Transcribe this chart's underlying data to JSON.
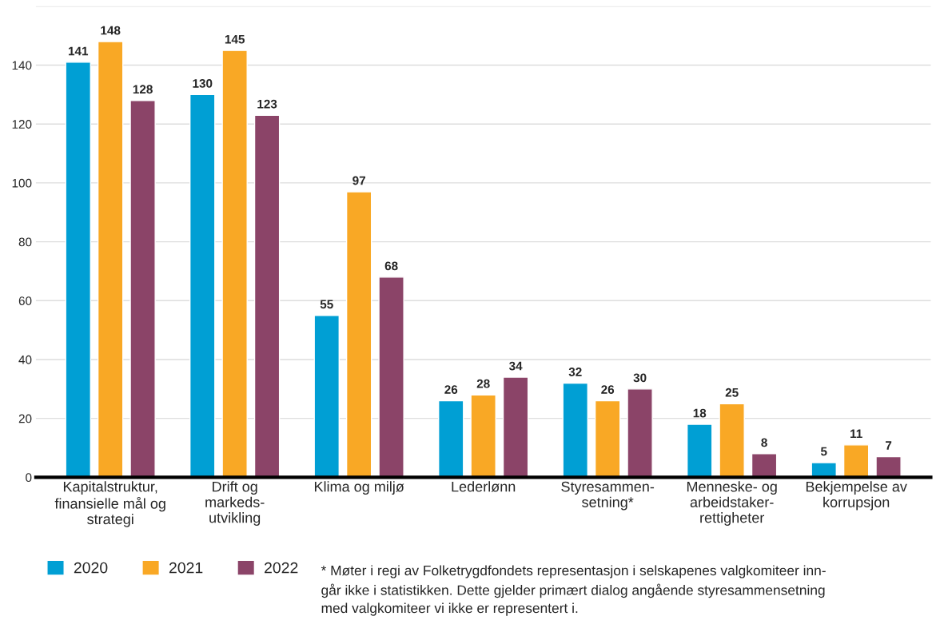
{
  "chart_data": {
    "type": "bar",
    "categories": [
      "Kapitalstruktur,\nfinansielle mål og\nstrategi",
      "Drift og\nmarkeds-\nutvikling",
      "Klima og miljø",
      "Lederlønn",
      "Styresammen-\nsetning*",
      "Menneske- og\narbeidstaker-\nrettigheter",
      "Bekjempelse av\nkorrupsjon"
    ],
    "series": [
      {
        "name": "2020",
        "color": "#009fd4",
        "values": [
          141,
          130,
          55,
          26,
          32,
          18,
          5
        ]
      },
      {
        "name": "2021",
        "color": "#f9a825",
        "values": [
          148,
          145,
          97,
          28,
          26,
          25,
          11
        ]
      },
      {
        "name": "2022",
        "color": "#8b4468",
        "values": [
          128,
          123,
          68,
          34,
          30,
          8,
          7
        ]
      }
    ],
    "ylim": [
      0,
      160
    ],
    "yticks": [
      0,
      20,
      40,
      60,
      80,
      100,
      120,
      140,
      {
        "value": 160,
        "label": null
      }
    ],
    "grid": "y",
    "legend": "bottom left",
    "data_labels": true,
    "annotations": [
      "* Møter i regi av Folketrygdfondets representasjon i selskapenes valgkomiteer inn-\ngår ikke i statistikken. Dette gjelder primært dialog angående styresammensetning\nmed valgkomiteer vi ikke er representert i."
    ]
  }
}
